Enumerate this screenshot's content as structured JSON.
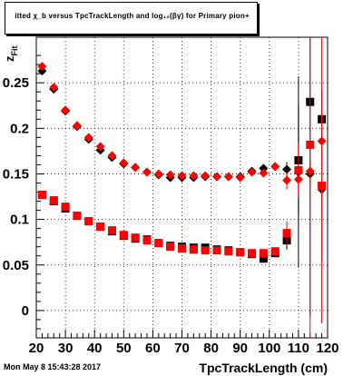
{
  "title": "itted  χ_b  versus TpcTrackLength and log₁₀(βγ) for Primary pion+",
  "timestamp": "Mon May  8 15:43:28 2017",
  "chart_data": {
    "type": "scatter",
    "title": "itted  χ_b  versus TpcTrackLength and log₁₀(βγ) for Primary pion+",
    "xlabel": "TpcTrackLength (cm)",
    "ylabel": "z_Fit",
    "xlim": [
      20,
      120
    ],
    "ylim": [
      -0.03,
      0.3
    ],
    "x_ticks": [
      "20",
      "30",
      "40",
      "50",
      "60",
      "70",
      "80",
      "90",
      "100",
      "110",
      "120"
    ],
    "y_ticks": [
      "0",
      "0.05",
      "0.1",
      "0.15",
      "0.2",
      "0.25"
    ],
    "grid": true,
    "series": [
      {
        "color": "#000000",
        "marker": "diamond",
        "points": [
          {
            "x": 22,
            "y": 0.263
          },
          {
            "x": 26,
            "y": 0.243
          },
          {
            "x": 30,
            "y": 0.219
          },
          {
            "x": 34,
            "y": 0.202
          },
          {
            "x": 38,
            "y": 0.188
          },
          {
            "x": 42,
            "y": 0.176
          },
          {
            "x": 46,
            "y": 0.168
          },
          {
            "x": 50,
            "y": 0.161
          },
          {
            "x": 54,
            "y": 0.157
          },
          {
            "x": 58,
            "y": 0.152
          },
          {
            "x": 62,
            "y": 0.149
          },
          {
            "x": 66,
            "y": 0.146
          },
          {
            "x": 70,
            "y": 0.146
          },
          {
            "x": 74,
            "y": 0.146
          },
          {
            "x": 78,
            "y": 0.147
          },
          {
            "x": 82,
            "y": 0.147
          },
          {
            "x": 86,
            "y": 0.147
          },
          {
            "x": 90,
            "y": 0.147
          },
          {
            "x": 94,
            "y": 0.153
          },
          {
            "x": 98,
            "y": 0.156
          },
          {
            "x": 102,
            "y": 0.158
          },
          {
            "x": 106,
            "y": 0.155,
            "err": 0.008
          },
          {
            "x": 110,
            "y": 0.152,
            "err": 0.105
          },
          {
            "x": 114,
            "y": 0.15,
            "err": 0.01
          },
          {
            "x": 118,
            "y": 0.133,
            "err": 0.01
          }
        ]
      },
      {
        "color": "#000000",
        "marker": "square",
        "points": [
          {
            "x": 22,
            "y": 0.127
          },
          {
            "x": 26,
            "y": 0.12
          },
          {
            "x": 30,
            "y": 0.112
          },
          {
            "x": 34,
            "y": 0.104
          },
          {
            "x": 38,
            "y": 0.098
          },
          {
            "x": 42,
            "y": 0.092
          },
          {
            "x": 46,
            "y": 0.087
          },
          {
            "x": 50,
            "y": 0.082
          },
          {
            "x": 54,
            "y": 0.079
          },
          {
            "x": 58,
            "y": 0.078
          },
          {
            "x": 62,
            "y": 0.074
          },
          {
            "x": 66,
            "y": 0.071
          },
          {
            "x": 70,
            "y": 0.07
          },
          {
            "x": 74,
            "y": 0.069
          },
          {
            "x": 78,
            "y": 0.069
          },
          {
            "x": 82,
            "y": 0.067
          },
          {
            "x": 86,
            "y": 0.066
          },
          {
            "x": 90,
            "y": 0.064
          },
          {
            "x": 94,
            "y": 0.062
          },
          {
            "x": 98,
            "y": 0.057
          },
          {
            "x": 102,
            "y": 0.063
          },
          {
            "x": 106,
            "y": 0.077,
            "err": 0.01
          },
          {
            "x": 110,
            "y": 0.165,
            "err": 0.06
          },
          {
            "x": 114,
            "y": 0.229,
            "err": 0.235
          },
          {
            "x": 118,
            "y": 0.21,
            "err": 0.03
          }
        ]
      },
      {
        "color": "#ff0000",
        "marker": "diamond",
        "points": [
          {
            "x": 22,
            "y": 0.268
          },
          {
            "x": 26,
            "y": 0.245
          },
          {
            "x": 30,
            "y": 0.22
          },
          {
            "x": 34,
            "y": 0.203
          },
          {
            "x": 38,
            "y": 0.19
          },
          {
            "x": 42,
            "y": 0.18
          },
          {
            "x": 46,
            "y": 0.17
          },
          {
            "x": 50,
            "y": 0.162
          },
          {
            "x": 54,
            "y": 0.157
          },
          {
            "x": 58,
            "y": 0.152
          },
          {
            "x": 62,
            "y": 0.15
          },
          {
            "x": 66,
            "y": 0.149
          },
          {
            "x": 70,
            "y": 0.148
          },
          {
            "x": 74,
            "y": 0.148
          },
          {
            "x": 78,
            "y": 0.148
          },
          {
            "x": 82,
            "y": 0.147
          },
          {
            "x": 86,
            "y": 0.147
          },
          {
            "x": 90,
            "y": 0.146
          },
          {
            "x": 94,
            "y": 0.152
          },
          {
            "x": 98,
            "y": 0.151
          },
          {
            "x": 102,
            "y": 0.158
          },
          {
            "x": 106,
            "y": 0.143,
            "err": 0.01
          },
          {
            "x": 110,
            "y": 0.144,
            "err": 0.012
          },
          {
            "x": 114,
            "y": 0.153,
            "err": 0.012
          },
          {
            "x": 118,
            "y": 0.186,
            "err": 0.2
          }
        ]
      },
      {
        "color": "#ff0000",
        "marker": "square",
        "points": [
          {
            "x": 22,
            "y": 0.127
          },
          {
            "x": 26,
            "y": 0.121
          },
          {
            "x": 30,
            "y": 0.114
          },
          {
            "x": 34,
            "y": 0.104
          },
          {
            "x": 38,
            "y": 0.098
          },
          {
            "x": 42,
            "y": 0.092
          },
          {
            "x": 46,
            "y": 0.088
          },
          {
            "x": 50,
            "y": 0.083
          },
          {
            "x": 54,
            "y": 0.08
          },
          {
            "x": 58,
            "y": 0.077
          },
          {
            "x": 62,
            "y": 0.074
          },
          {
            "x": 66,
            "y": 0.07
          },
          {
            "x": 70,
            "y": 0.068
          },
          {
            "x": 74,
            "y": 0.067
          },
          {
            "x": 78,
            "y": 0.066
          },
          {
            "x": 82,
            "y": 0.066
          },
          {
            "x": 86,
            "y": 0.065
          },
          {
            "x": 90,
            "y": 0.064
          },
          {
            "x": 94,
            "y": 0.063
          },
          {
            "x": 98,
            "y": 0.063
          },
          {
            "x": 102,
            "y": 0.065
          },
          {
            "x": 106,
            "y": 0.085,
            "err": 0.013
          },
          {
            "x": 110,
            "y": 0.154,
            "err": 0.03
          },
          {
            "x": 114,
            "y": 0.182,
            "err": 0.24
          },
          {
            "x": 118,
            "y": 0.137,
            "err": 0.08
          }
        ]
      }
    ]
  }
}
